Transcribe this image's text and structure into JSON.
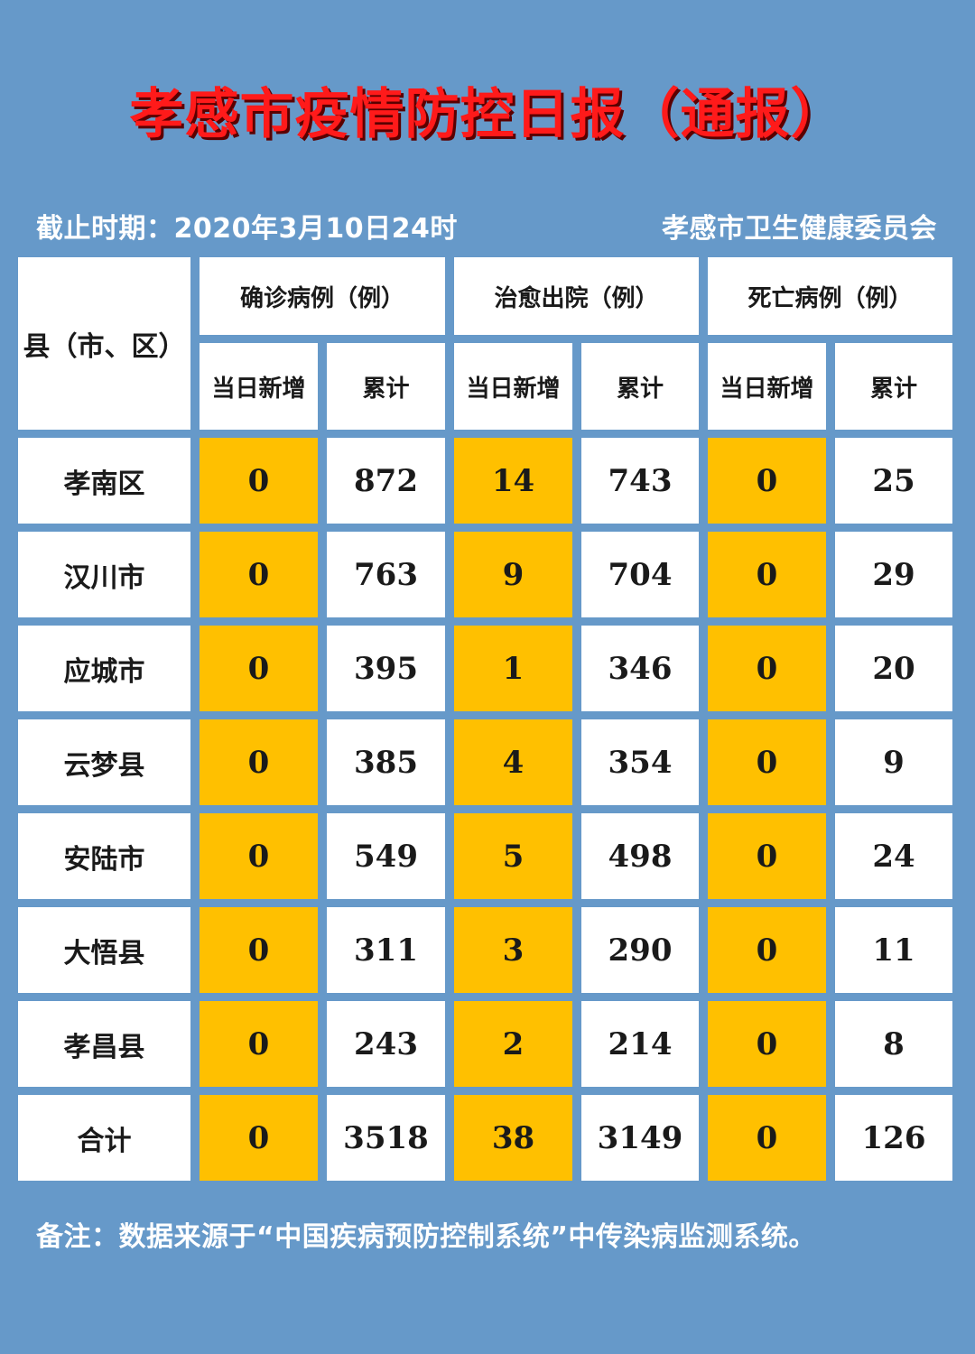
{
  "title": "孝感市疫情防控日报（通报）",
  "cutoff": "截止时期：2020年3月10日24时",
  "publisher": "孝感市卫生健康委员会",
  "table": {
    "county_header": "县（市、区）",
    "group_headers": [
      "确诊病例（例）",
      "治愈出院（例）",
      "死亡病例（例）"
    ],
    "sub_headers": [
      "当日新增",
      "累计",
      "当日新增",
      "累计",
      "当日新增",
      "累计"
    ],
    "rows": [
      {
        "name": "孝南区",
        "values": [
          "0",
          "872",
          "14",
          "743",
          "0",
          "25"
        ]
      },
      {
        "name": "汉川市",
        "values": [
          "0",
          "763",
          "9",
          "704",
          "0",
          "29"
        ]
      },
      {
        "name": "应城市",
        "values": [
          "0",
          "395",
          "1",
          "346",
          "0",
          "20"
        ]
      },
      {
        "name": "云梦县",
        "values": [
          "0",
          "385",
          "4",
          "354",
          "0",
          "9"
        ]
      },
      {
        "name": "安陆市",
        "values": [
          "0",
          "549",
          "5",
          "498",
          "0",
          "24"
        ]
      },
      {
        "name": "大悟县",
        "values": [
          "0",
          "311",
          "3",
          "290",
          "0",
          "11"
        ]
      },
      {
        "name": "孝昌县",
        "values": [
          "0",
          "243",
          "2",
          "214",
          "0",
          "8"
        ]
      },
      {
        "name": "合计",
        "values": [
          "0",
          "3518",
          "38",
          "3149",
          "0",
          "126"
        ]
      }
    ]
  },
  "note": "备注：数据来源于“中国疾病预防控制系统”中传染病监测系统。",
  "colors": {
    "background": "#6699c9",
    "highlight": "#ffc000",
    "title": "#ff1a1a"
  }
}
